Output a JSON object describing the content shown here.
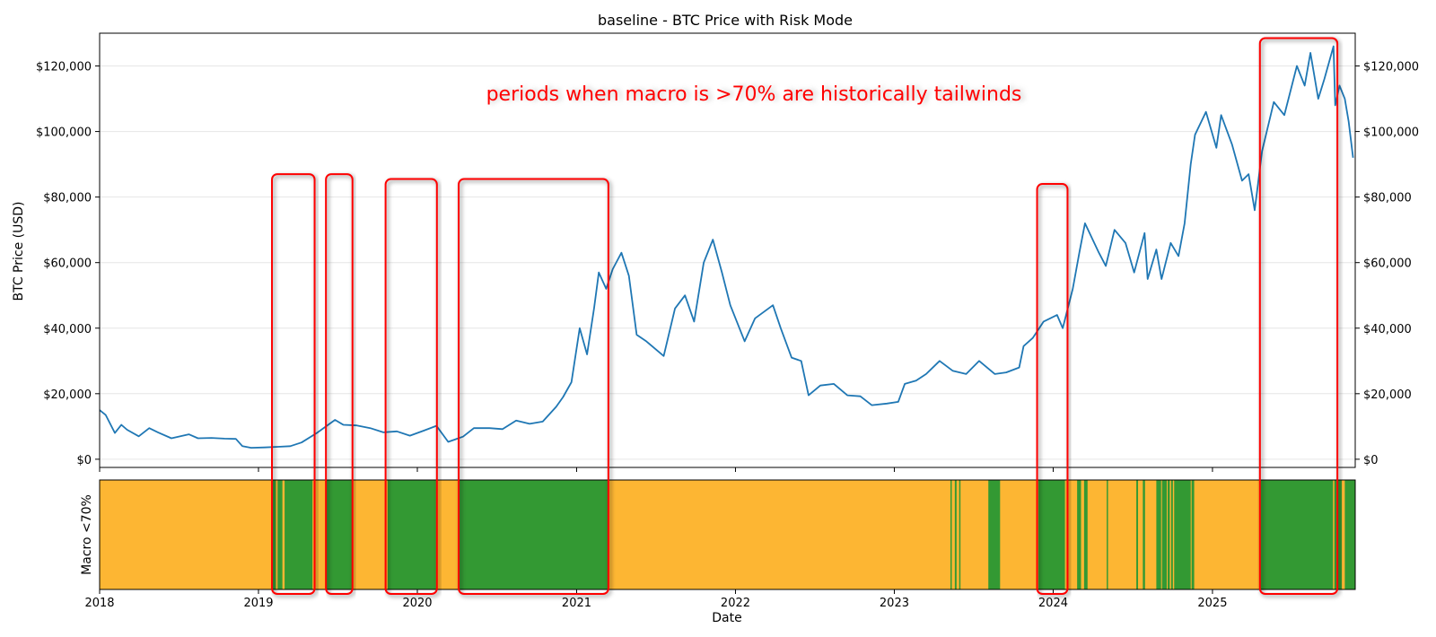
{
  "chart_data": [
    {
      "type": "line",
      "title": "baseline - BTC Price with Risk Mode",
      "ylabel": "BTC Price (USD)",
      "ylim": [
        -2500,
        130000
      ],
      "yticks": [
        0,
        20000,
        40000,
        60000,
        80000,
        100000,
        120000
      ],
      "ytick_labels": [
        "$0",
        "$20,000",
        "$40,000",
        "$60,000",
        "$80,000",
        "$100,000",
        "$120,000"
      ],
      "secondary_y_axis": true,
      "grid": "horizontal",
      "annotation": {
        "text": "periods when macro is >70% are historically tailwinds",
        "color": "#ff0000"
      },
      "highlight_boxes": [
        {
          "start": "2019-02-01",
          "end": "2019-05-10",
          "top": 87000
        },
        {
          "start": "2019-06-05",
          "end": "2019-08-05",
          "top": 87000
        },
        {
          "start": "2019-10-20",
          "end": "2020-02-15",
          "top": 85500
        },
        {
          "start": "2020-04-05",
          "end": "2021-03-15",
          "top": 85500
        },
        {
          "start": "2023-11-25",
          "end": "2024-02-03",
          "top": 84000
        },
        {
          "start": "2025-04-20",
          "end": "2025-10-15",
          "top": 128500
        }
      ],
      "series": [
        {
          "color": "#1f77b4",
          "x": [
            "2018-01-01",
            "2018-01-15",
            "2018-02-05",
            "2018-02-20",
            "2018-03-05",
            "2018-04-01",
            "2018-04-25",
            "2018-05-15",
            "2018-06-15",
            "2018-07-25",
            "2018-08-15",
            "2018-09-15",
            "2018-10-15",
            "2018-11-10",
            "2018-11-25",
            "2018-12-15",
            "2019-01-15",
            "2019-02-15",
            "2019-03-15",
            "2019-04-10",
            "2019-05-15",
            "2019-06-26",
            "2019-07-15",
            "2019-08-15",
            "2019-09-15",
            "2019-10-15",
            "2019-11-15",
            "2019-12-15",
            "2020-01-15",
            "2020-02-14",
            "2020-03-12",
            "2020-04-15",
            "2020-05-10",
            "2020-06-15",
            "2020-07-15",
            "2020-08-15",
            "2020-09-15",
            "2020-10-15",
            "2020-11-15",
            "2020-12-01",
            "2020-12-20",
            "2021-01-08",
            "2021-01-25",
            "2021-02-10",
            "2021-02-21",
            "2021-03-10",
            "2021-03-25",
            "2021-04-14",
            "2021-05-01",
            "2021-05-19",
            "2021-06-10",
            "2021-07-20",
            "2021-08-15",
            "2021-09-07",
            "2021-09-28",
            "2021-10-20",
            "2021-11-10",
            "2021-12-01",
            "2021-12-20",
            "2022-01-22",
            "2022-02-15",
            "2022-03-28",
            "2022-04-15",
            "2022-05-10",
            "2022-06-01",
            "2022-06-18",
            "2022-07-15",
            "2022-08-15",
            "2022-09-15",
            "2022-10-15",
            "2022-11-10",
            "2022-12-15",
            "2023-01-10",
            "2023-01-25",
            "2023-02-20",
            "2023-03-15",
            "2023-04-15",
            "2023-05-15",
            "2023-06-15",
            "2023-07-15",
            "2023-08-20",
            "2023-09-15",
            "2023-10-15",
            "2023-10-25",
            "2023-11-15",
            "2023-12-10",
            "2024-01-10",
            "2024-01-23",
            "2024-02-15",
            "2024-03-01",
            "2024-03-14",
            "2024-04-15",
            "2024-05-01",
            "2024-05-21",
            "2024-06-15",
            "2024-07-05",
            "2024-07-29",
            "2024-08-05",
            "2024-08-25",
            "2024-09-06",
            "2024-09-27",
            "2024-10-15",
            "2024-10-29",
            "2024-11-12",
            "2024-11-22",
            "2024-12-17",
            "2025-01-10",
            "2025-01-21",
            "2025-02-15",
            "2025-03-10",
            "2025-03-25",
            "2025-04-08",
            "2025-04-25",
            "2025-05-22",
            "2025-06-15",
            "2025-07-14",
            "2025-08-01",
            "2025-08-14",
            "2025-09-01",
            "2025-09-15",
            "2025-10-06",
            "2025-10-10",
            "2025-10-20",
            "2025-11-01",
            "2025-11-10",
            "2025-11-20"
          ],
          "values": [
            15000,
            13500,
            8000,
            10500,
            9000,
            7000,
            9500,
            8200,
            6400,
            7600,
            6400,
            6500,
            6300,
            6200,
            4000,
            3500,
            3600,
            3800,
            4000,
            5100,
            8000,
            12000,
            10500,
            10300,
            9500,
            8200,
            8500,
            7200,
            8700,
            10200,
            5300,
            6900,
            9500,
            9500,
            9200,
            11800,
            10800,
            11500,
            16000,
            19000,
            23500,
            40000,
            32000,
            46000,
            57000,
            52000,
            58000,
            63000,
            56000,
            38000,
            36000,
            31500,
            46000,
            50000,
            42000,
            60000,
            67000,
            57000,
            47000,
            36000,
            43000,
            47000,
            40000,
            31000,
            30000,
            19500,
            22500,
            23000,
            19500,
            19200,
            16500,
            17000,
            17500,
            23000,
            24000,
            26000,
            30000,
            27000,
            26000,
            30000,
            26000,
            26500,
            28000,
            34500,
            37000,
            42000,
            44000,
            40000,
            52000,
            63000,
            72000,
            63000,
            59000,
            70000,
            66000,
            57000,
            69000,
            55000,
            64000,
            55000,
            66000,
            62000,
            72000,
            90000,
            99000,
            106000,
            95000,
            105000,
            96000,
            85000,
            87000,
            76000,
            94000,
            109000,
            105000,
            120000,
            114000,
            124000,
            110000,
            116000,
            126000,
            108000,
            114000,
            110000,
            103000,
            92000
          ]
        }
      ]
    },
    {
      "type": "heatmap",
      "xlabel": "Date",
      "ylabel": "Macro <70%",
      "xlim": [
        "2018-01-01",
        "2025-11-25"
      ],
      "xticks": [
        "2018",
        "2019",
        "2020",
        "2021",
        "2022",
        "2023",
        "2024",
        "2025"
      ],
      "colors": {
        "below_70": "#fdb633",
        "above_70": "#339933"
      },
      "green_periods": [
        [
          "2019-02-01",
          "2019-02-10"
        ],
        [
          "2019-02-14",
          "2019-02-25"
        ],
        [
          "2019-03-02",
          "2019-05-05"
        ],
        [
          "2019-06-05",
          "2019-08-05"
        ],
        [
          "2019-10-25",
          "2020-02-13"
        ],
        [
          "2020-04-05",
          "2021-03-15"
        ],
        [
          "2023-05-10",
          "2023-05-13"
        ],
        [
          "2023-05-20",
          "2023-05-24"
        ],
        [
          "2023-05-30",
          "2023-06-02"
        ],
        [
          "2023-08-05",
          "2023-09-01"
        ],
        [
          "2023-11-28",
          "2024-01-28"
        ],
        [
          "2024-02-01",
          "2024-02-05"
        ],
        [
          "2024-02-25",
          "2024-03-05"
        ],
        [
          "2024-03-12",
          "2024-03-20"
        ],
        [
          "2024-05-03",
          "2024-05-06"
        ],
        [
          "2024-07-10",
          "2024-07-14"
        ],
        [
          "2024-07-25",
          "2024-07-30"
        ],
        [
          "2024-08-25",
          "2024-09-05"
        ],
        [
          "2024-09-07",
          "2024-09-18"
        ],
        [
          "2024-09-20",
          "2024-09-25"
        ],
        [
          "2024-09-28",
          "2024-10-02"
        ],
        [
          "2024-10-05",
          "2024-11-12"
        ],
        [
          "2024-11-14",
          "2024-11-20"
        ],
        [
          "2025-04-20",
          "2025-10-05"
        ],
        [
          "2025-10-08",
          "2025-10-13"
        ],
        [
          "2025-10-16",
          "2025-10-25"
        ],
        [
          "2025-11-01",
          "2025-11-25"
        ]
      ]
    }
  ]
}
